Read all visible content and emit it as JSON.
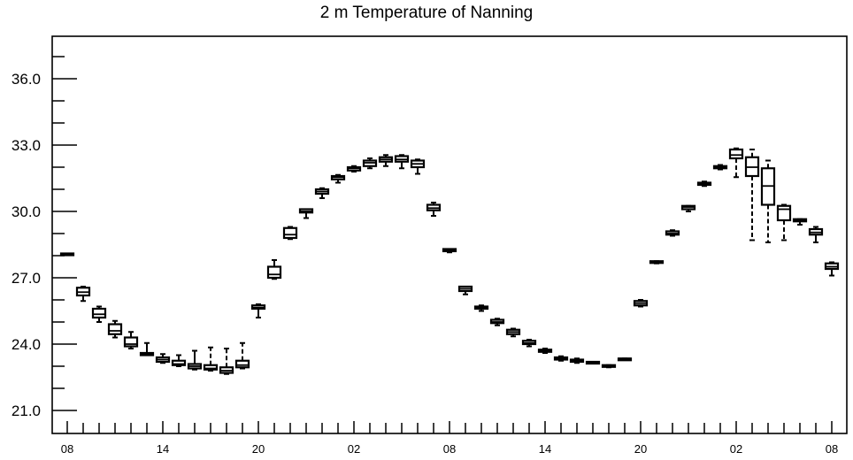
{
  "chart_data": {
    "type": "box",
    "title": "2 m Temperature of Nanning",
    "xlabel": "",
    "ylabel": "",
    "ylim": [
      20.0,
      38.0
    ],
    "yticks": [
      21.0,
      24.0,
      27.0,
      30.0,
      33.0,
      36.0
    ],
    "ytick_labels": [
      "21.0",
      "24.0",
      "27.0",
      "30.0",
      "33.0",
      "36.0"
    ],
    "xlim": [
      -0.5,
      48.5
    ],
    "xticks": [
      0,
      6,
      12,
      18,
      24,
      30,
      36,
      42,
      48
    ],
    "xtick_labels": [
      "08",
      "14",
      "20",
      "02",
      "08",
      "14",
      "20",
      "02",
      "08"
    ],
    "grid": false,
    "boxes": [
      {
        "x": 0,
        "min": 28.05,
        "q1": 28.05,
        "median": 28.1,
        "q3": 28.1,
        "max": 28.1
      },
      {
        "x": 1,
        "min": 25.95,
        "q1": 26.2,
        "median": 26.35,
        "q3": 26.55,
        "max": 26.6
      },
      {
        "x": 2,
        "min": 25.0,
        "q1": 25.2,
        "median": 25.35,
        "q3": 25.6,
        "max": 25.7
      },
      {
        "x": 3,
        "min": 24.3,
        "q1": 24.45,
        "median": 24.6,
        "q3": 24.9,
        "max": 25.05
      },
      {
        "x": 4,
        "min": 23.8,
        "q1": 23.9,
        "median": 24.0,
        "q3": 24.3,
        "max": 24.55
      },
      {
        "x": 5,
        "min": 23.5,
        "q1": 23.5,
        "median": 23.55,
        "q3": 23.6,
        "max": 24.05
      },
      {
        "x": 6,
        "min": 23.15,
        "q1": 23.2,
        "median": 23.3,
        "q3": 23.4,
        "max": 23.55
      },
      {
        "x": 7,
        "min": 23.0,
        "q1": 23.05,
        "median": 23.1,
        "q3": 23.25,
        "max": 23.5
      },
      {
        "x": 8,
        "min": 22.85,
        "q1": 22.9,
        "median": 23.0,
        "q3": 23.1,
        "max": 23.7
      },
      {
        "x": 9,
        "min": 22.8,
        "q1": 22.85,
        "median": 22.9,
        "q3": 23.05,
        "max": 23.85
      },
      {
        "x": 10,
        "min": 22.65,
        "q1": 22.7,
        "median": 22.8,
        "q3": 22.95,
        "max": 23.8
      },
      {
        "x": 11,
        "min": 22.9,
        "q1": 22.95,
        "median": 23.05,
        "q3": 23.25,
        "max": 24.05
      },
      {
        "x": 12,
        "min": 25.2,
        "q1": 25.6,
        "median": 25.65,
        "q3": 25.75,
        "max": 25.8
      },
      {
        "x": 13,
        "min": 26.95,
        "q1": 27.0,
        "median": 27.15,
        "q3": 27.5,
        "max": 27.8
      },
      {
        "x": 14,
        "min": 28.75,
        "q1": 28.8,
        "median": 28.95,
        "q3": 29.25,
        "max": 29.3
      },
      {
        "x": 15,
        "min": 29.7,
        "q1": 29.95,
        "median": 30.0,
        "q3": 30.1,
        "max": 30.1
      },
      {
        "x": 16,
        "min": 30.6,
        "q1": 30.8,
        "median": 30.9,
        "q3": 31.0,
        "max": 31.05
      },
      {
        "x": 17,
        "min": 31.3,
        "q1": 31.45,
        "median": 31.55,
        "q3": 31.6,
        "max": 31.65
      },
      {
        "x": 18,
        "min": 31.8,
        "q1": 31.85,
        "median": 31.95,
        "q3": 32.0,
        "max": 32.05
      },
      {
        "x": 19,
        "min": 31.95,
        "q1": 32.05,
        "median": 32.2,
        "q3": 32.3,
        "max": 32.4
      },
      {
        "x": 20,
        "min": 32.05,
        "q1": 32.25,
        "median": 32.35,
        "q3": 32.45,
        "max": 32.55
      },
      {
        "x": 21,
        "min": 31.95,
        "q1": 32.25,
        "median": 32.35,
        "q3": 32.5,
        "max": 32.55
      },
      {
        "x": 22,
        "min": 31.7,
        "q1": 32.0,
        "median": 32.15,
        "q3": 32.3,
        "max": 32.35
      },
      {
        "x": 23,
        "min": 29.8,
        "q1": 30.05,
        "median": 30.15,
        "q3": 30.3,
        "max": 30.4
      },
      {
        "x": 24,
        "min": 28.15,
        "q1": 28.2,
        "median": 28.25,
        "q3": 28.3,
        "max": 28.3
      },
      {
        "x": 25,
        "min": 26.25,
        "q1": 26.4,
        "median": 26.5,
        "q3": 26.6,
        "max": 26.6
      },
      {
        "x": 26,
        "min": 25.5,
        "q1": 25.6,
        "median": 25.65,
        "q3": 25.7,
        "max": 25.75
      },
      {
        "x": 27,
        "min": 24.85,
        "q1": 24.95,
        "median": 25.0,
        "q3": 25.1,
        "max": 25.15
      },
      {
        "x": 28,
        "min": 24.35,
        "q1": 24.45,
        "median": 24.55,
        "q3": 24.65,
        "max": 24.7
      },
      {
        "x": 29,
        "min": 23.9,
        "q1": 24.0,
        "median": 24.05,
        "q3": 24.15,
        "max": 24.2
      },
      {
        "x": 30,
        "min": 23.6,
        "q1": 23.65,
        "median": 23.7,
        "q3": 23.75,
        "max": 23.8
      },
      {
        "x": 31,
        "min": 23.25,
        "q1": 23.3,
        "median": 23.35,
        "q3": 23.4,
        "max": 23.45
      },
      {
        "x": 32,
        "min": 23.15,
        "q1": 23.2,
        "median": 23.25,
        "q3": 23.3,
        "max": 23.35
      },
      {
        "x": 33,
        "min": 23.15,
        "q1": 23.15,
        "median": 23.2,
        "q3": 23.2,
        "max": 23.2
      },
      {
        "x": 34,
        "min": 22.95,
        "q1": 23.0,
        "median": 23.0,
        "q3": 23.05,
        "max": 23.05
      },
      {
        "x": 35,
        "min": 23.3,
        "q1": 23.3,
        "median": 23.35,
        "q3": 23.35,
        "max": 23.35
      },
      {
        "x": 36,
        "min": 25.7,
        "q1": 25.75,
        "median": 25.85,
        "q3": 25.95,
        "max": 26.0
      },
      {
        "x": 37,
        "min": 27.65,
        "q1": 27.7,
        "median": 27.7,
        "q3": 27.75,
        "max": 27.75
      },
      {
        "x": 38,
        "min": 28.9,
        "q1": 28.95,
        "median": 29.0,
        "q3": 29.1,
        "max": 29.15
      },
      {
        "x": 39,
        "min": 30.0,
        "q1": 30.1,
        "median": 30.2,
        "q3": 30.25,
        "max": 30.25
      },
      {
        "x": 40,
        "min": 31.15,
        "q1": 31.2,
        "median": 31.25,
        "q3": 31.3,
        "max": 31.35
      },
      {
        "x": 41,
        "min": 31.9,
        "q1": 31.95,
        "median": 32.0,
        "q3": 32.05,
        "max": 32.1
      },
      {
        "x": 42,
        "min": 31.55,
        "q1": 32.4,
        "median": 32.55,
        "q3": 32.8,
        "max": 32.85
      },
      {
        "x": 43,
        "min": 28.7,
        "q1": 31.6,
        "median": 32.0,
        "q3": 32.45,
        "max": 32.8
      },
      {
        "x": 44,
        "min": 28.6,
        "q1": 30.3,
        "median": 31.15,
        "q3": 31.95,
        "max": 32.3
      },
      {
        "x": 45,
        "min": 28.7,
        "q1": 29.6,
        "median": 30.1,
        "q3": 30.25,
        "max": 30.3
      },
      {
        "x": 46,
        "min": 29.4,
        "q1": 29.55,
        "median": 29.6,
        "q3": 29.65,
        "max": 29.65
      },
      {
        "x": 47,
        "min": 28.6,
        "q1": 28.95,
        "median": 29.05,
        "q3": 29.2,
        "max": 29.3
      },
      {
        "x": 48,
        "min": 27.1,
        "q1": 27.4,
        "median": 27.5,
        "q3": 27.65,
        "max": 27.7
      }
    ]
  }
}
